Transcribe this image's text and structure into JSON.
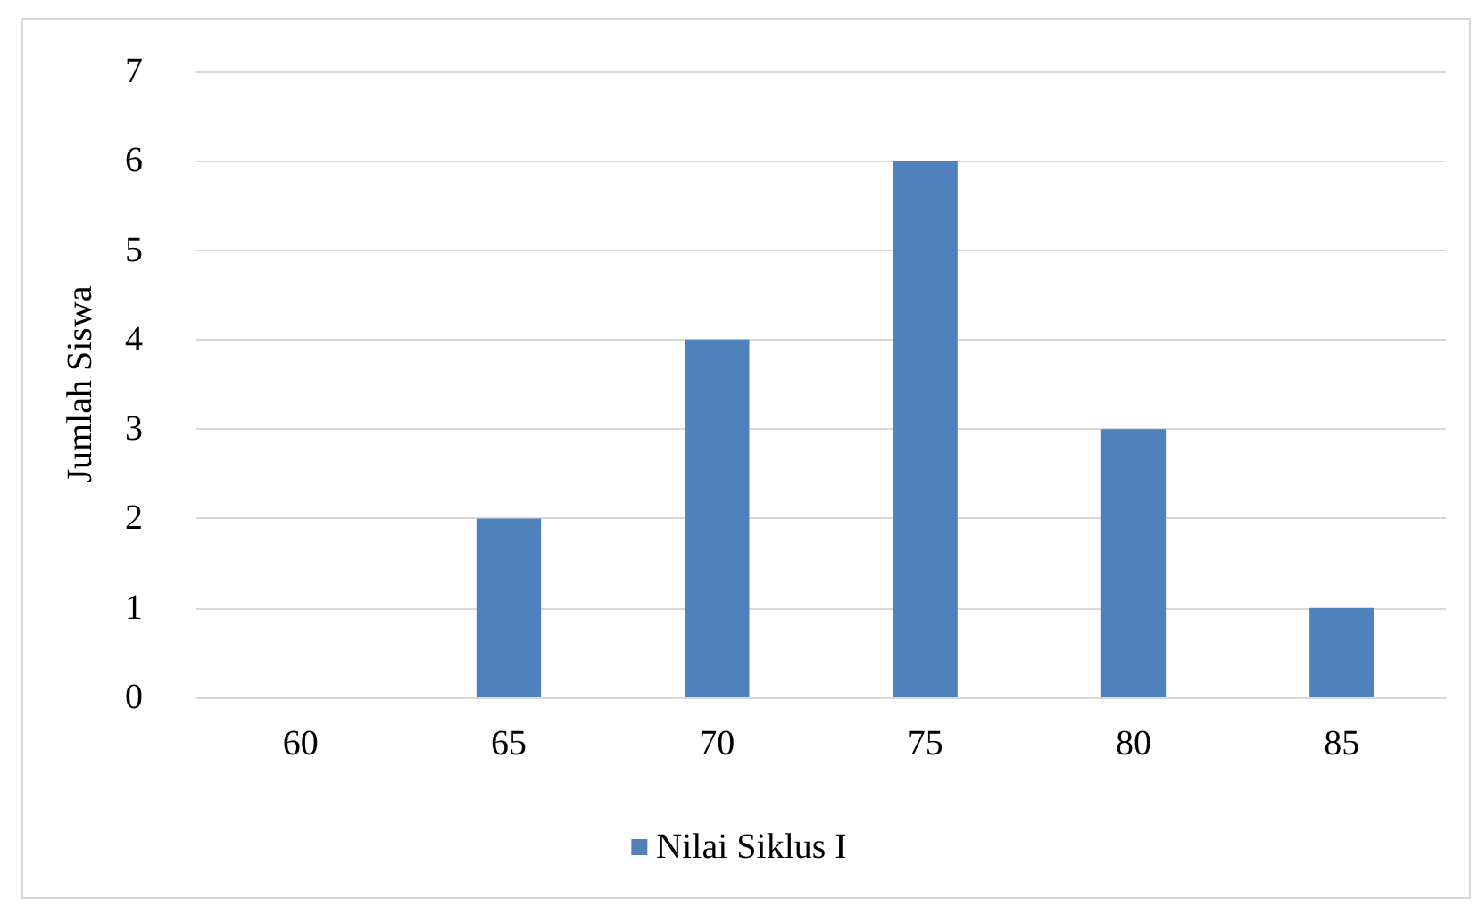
{
  "chart_data": {
    "type": "bar",
    "ylabel": "Jumlah Siswa",
    "categories": [
      "60",
      "65",
      "70",
      "75",
      "80",
      "85"
    ],
    "series": [
      {
        "name": "Nilai Siklus I",
        "color": "#4f81bd",
        "values": [
          0,
          2,
          4,
          6,
          3,
          1
        ]
      }
    ],
    "ylim": [
      0,
      7
    ],
    "yticks": [
      0,
      1,
      2,
      3,
      4,
      5,
      6,
      7
    ],
    "grid": "y",
    "legend": "bottom"
  }
}
